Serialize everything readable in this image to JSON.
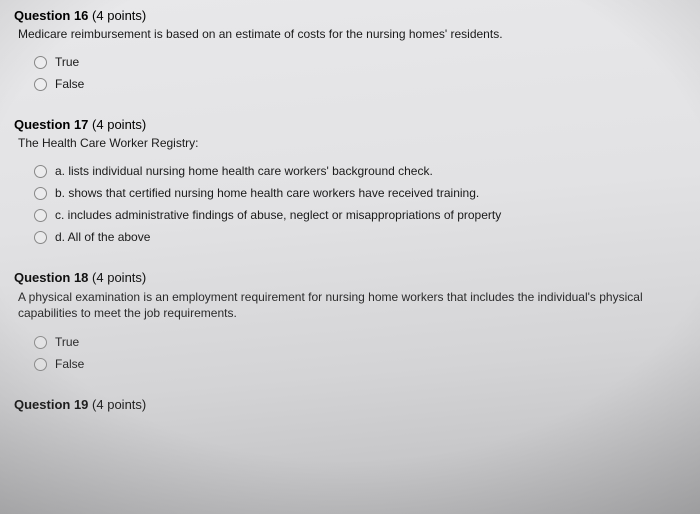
{
  "questions": [
    {
      "number": "Question 16",
      "points": "(4 points)",
      "prompt": "Medicare reimbursement is based on an estimate of costs for the nursing homes' residents.",
      "options": [
        "True",
        "False"
      ]
    },
    {
      "number": "Question 17",
      "points": "(4 points)",
      "prompt": "The Health Care Worker Registry:",
      "options": [
        "a. lists individual nursing home health care workers' background check.",
        "b. shows that certified nursing home health care workers have received training.",
        "c. includes administrative findings of abuse, neglect or misappropriations of property",
        "d. All of the above"
      ]
    },
    {
      "number": "Question 18",
      "points": "(4 points)",
      "prompt": "A physical examination is an employment requirement for nursing home workers that includes the individual's physical capabilities to meet the job requirements.",
      "options": [
        "True",
        "False"
      ]
    },
    {
      "number": "Question 19",
      "points": "(4 points)",
      "prompt": "",
      "options": []
    }
  ]
}
